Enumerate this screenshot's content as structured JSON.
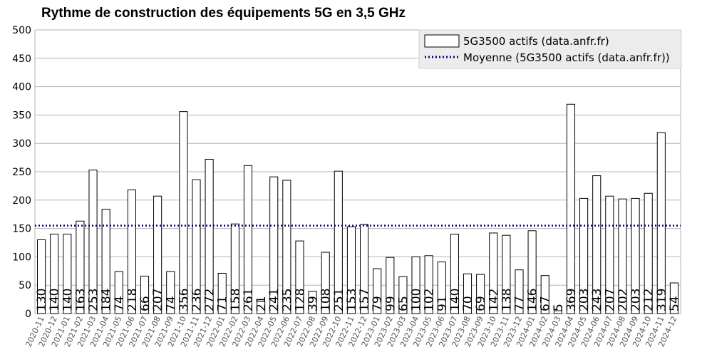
{
  "chart_data": {
    "type": "bar",
    "title": "Rythme de construction des équipements 5G en 3,5 GHz",
    "xlabel": "",
    "ylabel": "",
    "ylim": [
      0,
      500
    ],
    "yticks": [
      0,
      50,
      100,
      150,
      200,
      250,
      300,
      350,
      400,
      450,
      500
    ],
    "grid": true,
    "legend_position": "top-right",
    "categories": [
      "2020-11",
      "2020-12",
      "2021-01",
      "2021-02",
      "2021-03",
      "2021-04",
      "2021-05",
      "2021-06",
      "2021-07",
      "2021-08",
      "2021-09",
      "2021-10",
      "2021-11",
      "2021-12",
      "2022-01",
      "2022-02",
      "2022-03",
      "2022-04",
      "2022-05",
      "2022-06",
      "2022-07",
      "2022-08",
      "2022-09",
      "2022-10",
      "2022-11",
      "2022-12",
      "2023-01",
      "2023-02",
      "2023-03",
      "2023-04",
      "2023-05",
      "2023-06",
      "2023-07",
      "2023-08",
      "2023-09",
      "2023-10",
      "2023-11",
      "2023-12",
      "2024-01",
      "2024-02",
      "2024-03",
      "2024-04",
      "2024-05",
      "2024-06",
      "2024-07",
      "2024-08",
      "2024-09",
      "2024-10",
      "2024-11",
      "2024-12"
    ],
    "series": [
      {
        "name": "5G3500 actifs (data.anfr.fr)",
        "values": [
          130,
          140,
          140,
          163,
          253,
          184,
          74,
          218,
          66,
          207,
          74,
          356,
          236,
          272,
          71,
          158,
          261,
          21,
          241,
          235,
          128,
          39,
          108,
          251,
          153,
          157,
          79,
          99,
          65,
          100,
          102,
          91,
          140,
          70,
          69,
          142,
          138,
          77,
          146,
          67,
          5,
          369,
          203,
          243,
          207,
          202,
          203,
          212,
          319,
          54
        ],
        "color": "#ffffff",
        "stroke": "#000000"
      }
    ],
    "average": {
      "name": "Moyenne (5G3500 actifs (data.anfr.fr))",
      "value": 155,
      "color": "#000080"
    }
  }
}
